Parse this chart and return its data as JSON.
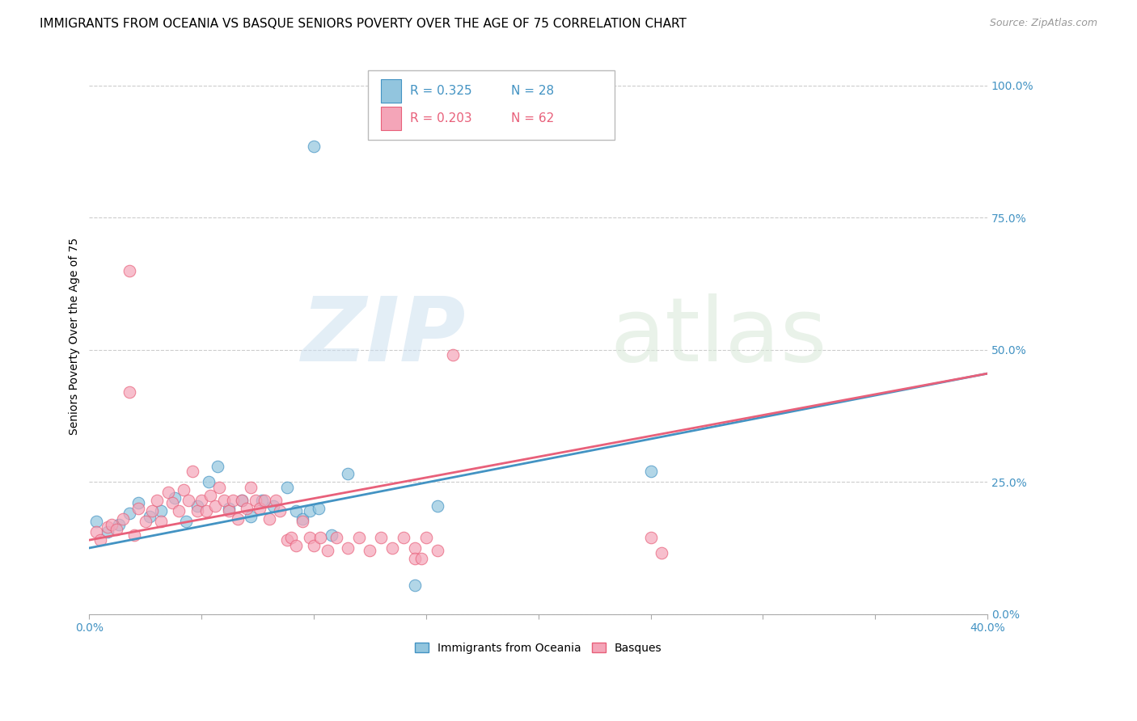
{
  "title": "IMMIGRANTS FROM OCEANIA VS BASQUE SENIORS POVERTY OVER THE AGE OF 75 CORRELATION CHART",
  "source": "Source: ZipAtlas.com",
  "ylabel": "Seniors Poverty Over the Age of 75",
  "xlim": [
    0.0,
    0.4
  ],
  "ylim": [
    0.0,
    1.05
  ],
  "xticks": [
    0.0,
    0.05,
    0.1,
    0.15,
    0.2,
    0.25,
    0.3,
    0.35,
    0.4
  ],
  "xtick_labels": [
    "0.0%",
    "",
    "",
    "",
    "",
    "",
    "",
    "",
    "40.0%"
  ],
  "yticks_right": [
    0.0,
    0.25,
    0.5,
    0.75,
    1.0
  ],
  "ytick_labels_right": [
    "0.0%",
    "25.0%",
    "50.0%",
    "75.0%",
    "100.0%"
  ],
  "blue_color": "#92c5de",
  "pink_color": "#f4a5b8",
  "blue_edge_color": "#4393c3",
  "pink_edge_color": "#e8607a",
  "legend_label_blue": "Immigrants from Oceania",
  "legend_label_pink": "Basques",
  "legend_r_blue": "R = 0.325",
  "legend_n_blue": "N = 28",
  "legend_r_pink": "R = 0.203",
  "legend_n_pink": "N = 62",
  "watermark_zip": "ZIP",
  "watermark_atlas": "atlas",
  "blue_scatter_x": [
    0.1,
    0.003,
    0.008,
    0.013,
    0.018,
    0.022,
    0.027,
    0.032,
    0.038,
    0.043,
    0.048,
    0.053,
    0.057,
    0.062,
    0.068,
    0.072,
    0.077,
    0.082,
    0.088,
    0.092,
    0.095,
    0.098,
    0.102,
    0.108,
    0.115,
    0.155,
    0.25,
    0.145
  ],
  "blue_scatter_y": [
    0.885,
    0.175,
    0.155,
    0.17,
    0.19,
    0.21,
    0.185,
    0.195,
    0.22,
    0.175,
    0.205,
    0.25,
    0.28,
    0.2,
    0.215,
    0.185,
    0.215,
    0.205,
    0.24,
    0.195,
    0.18,
    0.195,
    0.2,
    0.15,
    0.265,
    0.205,
    0.27,
    0.055
  ],
  "pink_scatter_x": [
    0.003,
    0.005,
    0.008,
    0.01,
    0.012,
    0.015,
    0.018,
    0.02,
    0.022,
    0.025,
    0.028,
    0.03,
    0.032,
    0.035,
    0.037,
    0.04,
    0.042,
    0.044,
    0.046,
    0.048,
    0.05,
    0.052,
    0.054,
    0.056,
    0.058,
    0.06,
    0.062,
    0.064,
    0.066,
    0.068,
    0.07,
    0.072,
    0.074,
    0.076,
    0.078,
    0.08,
    0.083,
    0.085,
    0.088,
    0.09,
    0.092,
    0.095,
    0.098,
    0.1,
    0.103,
    0.106,
    0.11,
    0.115,
    0.12,
    0.125,
    0.13,
    0.135,
    0.14,
    0.145,
    0.15,
    0.155,
    0.162,
    0.25,
    0.255,
    0.145,
    0.148,
    0.018
  ],
  "pink_scatter_y": [
    0.155,
    0.14,
    0.165,
    0.17,
    0.16,
    0.18,
    0.65,
    0.15,
    0.2,
    0.175,
    0.195,
    0.215,
    0.175,
    0.23,
    0.21,
    0.195,
    0.235,
    0.215,
    0.27,
    0.195,
    0.215,
    0.195,
    0.225,
    0.205,
    0.24,
    0.215,
    0.195,
    0.215,
    0.18,
    0.215,
    0.2,
    0.24,
    0.215,
    0.2,
    0.215,
    0.18,
    0.215,
    0.195,
    0.14,
    0.145,
    0.13,
    0.175,
    0.145,
    0.13,
    0.145,
    0.12,
    0.145,
    0.125,
    0.145,
    0.12,
    0.145,
    0.125,
    0.145,
    0.125,
    0.145,
    0.12,
    0.49,
    0.145,
    0.115,
    0.105,
    0.105,
    0.42
  ],
  "blue_trend_x": [
    0.0,
    0.4
  ],
  "blue_trend_y": [
    0.125,
    0.455
  ],
  "pink_trend_x": [
    0.0,
    0.4
  ],
  "pink_trend_y": [
    0.14,
    0.455
  ],
  "axis_color": "#4393c3",
  "grid_color": "#cccccc",
  "title_fontsize": 11,
  "axis_label_fontsize": 10,
  "tick_fontsize": 10
}
